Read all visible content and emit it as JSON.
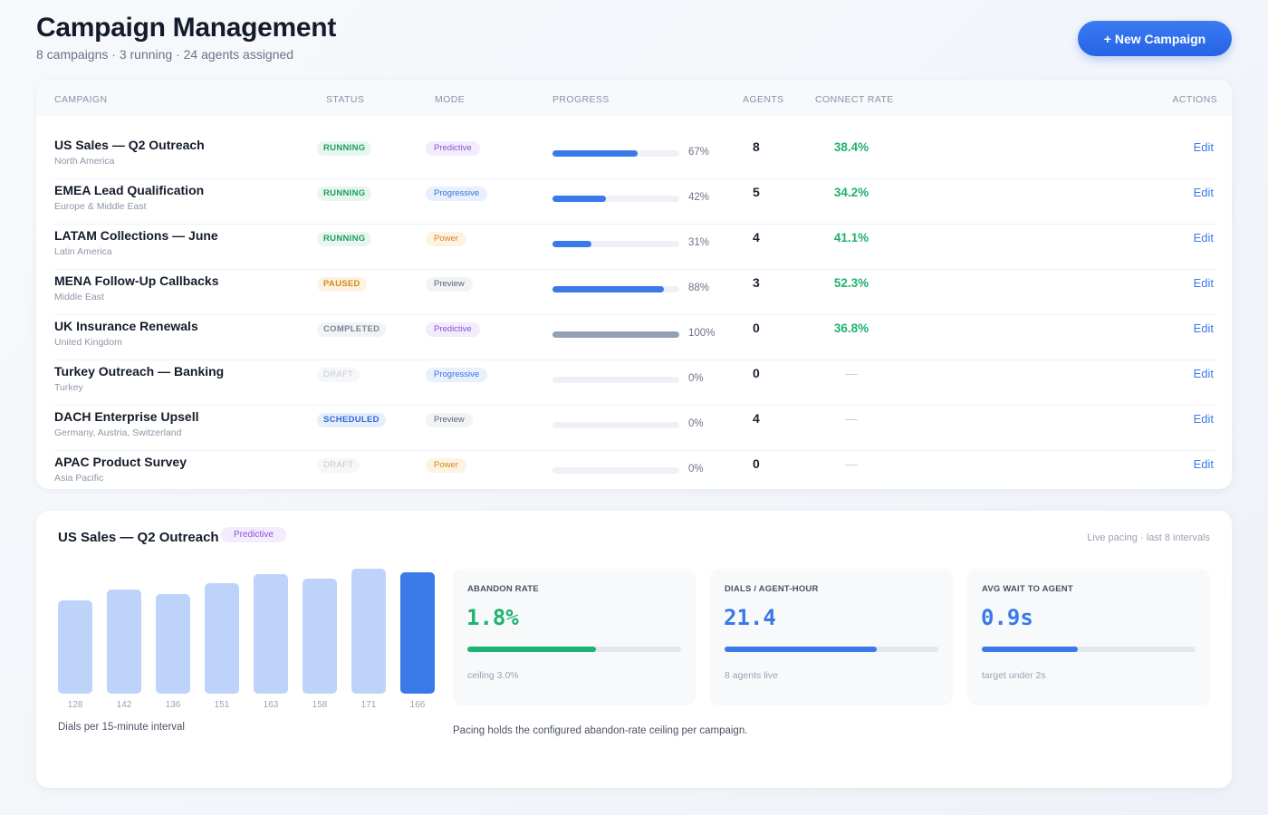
{
  "page": {
    "title": "Campaign Management",
    "subtitle": "8 campaigns · 3 running · 24 agents assigned",
    "new_campaign_label": "+ New Campaign"
  },
  "table": {
    "headers": {
      "campaign": "CAMPAIGN",
      "status": "STATUS",
      "mode": "MODE",
      "progress": "PROGRESS",
      "agents": "AGENTS",
      "connect_rate": "CONNECT RATE",
      "actions": "ACTIONS"
    },
    "rows": [
      {
        "name": "US Sales — Q2 Outreach",
        "region": "North America",
        "status": "RUNNING",
        "status_kind": "running",
        "mode": "Predictive",
        "mode_kind": "predictive",
        "progress": 67,
        "progress_label": "67%",
        "agents": "8",
        "connect_rate": "38.4%",
        "action": "Edit"
      },
      {
        "name": "EMEA Lead Qualification",
        "region": "Europe & Middle East",
        "status": "RUNNING",
        "status_kind": "running",
        "mode": "Progressive",
        "mode_kind": "progressive",
        "progress": 42,
        "progress_label": "42%",
        "agents": "5",
        "connect_rate": "34.2%",
        "action": "Edit"
      },
      {
        "name": "LATAM Collections — June",
        "region": "Latin America",
        "status": "RUNNING",
        "status_kind": "running",
        "mode": "Power",
        "mode_kind": "power",
        "progress": 31,
        "progress_label": "31%",
        "agents": "4",
        "connect_rate": "41.1%",
        "action": "Edit"
      },
      {
        "name": "MENA Follow-Up Callbacks",
        "region": "Middle East",
        "status": "PAUSED",
        "status_kind": "paused",
        "mode": "Preview",
        "mode_kind": "preview",
        "progress": 88,
        "progress_label": "88%",
        "agents": "3",
        "connect_rate": "52.3%",
        "action": "Edit"
      },
      {
        "name": "UK Insurance Renewals",
        "region": "United Kingdom",
        "status": "COMPLETED",
        "status_kind": "completed",
        "mode": "Predictive",
        "mode_kind": "predictive",
        "progress": 100,
        "progress_label": "100%",
        "agents": "0",
        "connect_rate": "36.8%",
        "action": "Edit"
      },
      {
        "name": "Turkey Outreach — Banking",
        "region": "Turkey",
        "status": "DRAFT",
        "status_kind": "draft",
        "mode": "Progressive",
        "mode_kind": "progressive",
        "progress": 0,
        "progress_label": "0%",
        "agents": "0",
        "connect_rate": "—",
        "action": "Edit"
      },
      {
        "name": "DACH Enterprise Upsell",
        "region": "Germany, Austria, Switzerland",
        "status": "SCHEDULED",
        "status_kind": "scheduled",
        "mode": "Preview",
        "mode_kind": "preview",
        "progress": 0,
        "progress_label": "0%",
        "agents": "4",
        "connect_rate": "—",
        "action": "Edit"
      },
      {
        "name": "APAC Product Survey",
        "region": "Asia Pacific",
        "status": "DRAFT",
        "status_kind": "draft",
        "mode": "Power",
        "mode_kind": "power",
        "progress": 0,
        "progress_label": "0%",
        "agents": "0",
        "connect_rate": "—",
        "action": "Edit"
      }
    ]
  },
  "detail": {
    "title": "US Sales — Q2 Outreach",
    "mode": "Predictive",
    "pacing_note": "Live pacing · last 8 intervals",
    "bars_caption": "Dials per 15-minute interval",
    "footnote": "Pacing holds the configured abandon-rate ceiling per campaign.",
    "metrics": [
      {
        "label": "ABANDON RATE",
        "value": "1.8%",
        "fill": 0.6,
        "color": "#1fb270",
        "sub": "ceiling 3.0%"
      },
      {
        "label": "DIALS / AGENT-HOUR",
        "value": "21.4",
        "fill": 0.71,
        "color": "#3a7ae8",
        "sub": "8 agents live"
      },
      {
        "label": "AVG WAIT TO AGENT",
        "value": "0.9s",
        "fill": 0.45,
        "color": "#3a7ae8",
        "sub": "target under 2s"
      }
    ]
  },
  "chart_data": {
    "type": "bar",
    "categories": [
      "128",
      "142",
      "136",
      "151",
      "163",
      "158",
      "171",
      "166"
    ],
    "values": [
      128,
      142,
      136,
      151,
      163,
      158,
      171,
      166
    ],
    "highlight_index": 7,
    "ylim": [
      0,
      176
    ],
    "xlabel": "Dials per 15-minute interval",
    "ylabel": ""
  }
}
